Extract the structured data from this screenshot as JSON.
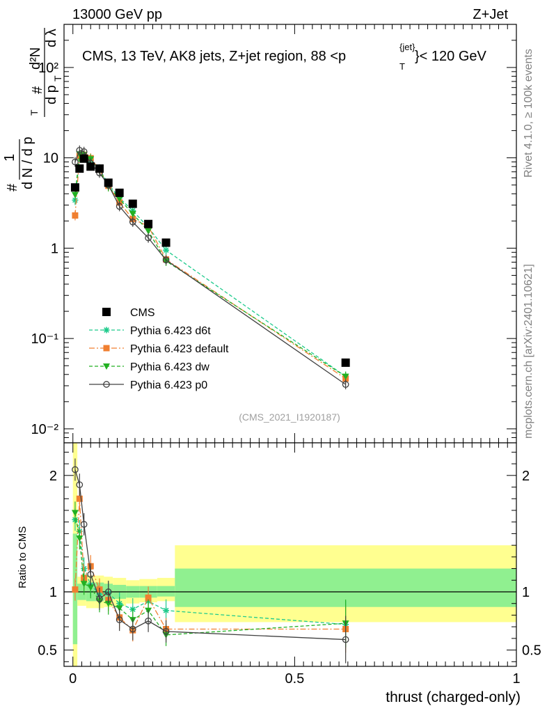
{
  "header": {
    "left": "13000 GeV pp",
    "right": "Z+Jet"
  },
  "side": {
    "rivet": "Rivet 4.1.0, ≥ 100k events",
    "mcplots": "mcplots.cern.ch [arXiv:2401.10621]"
  },
  "colors": {
    "cms": "#000000",
    "d6t": "#1ecb8c",
    "default": "#f07f30",
    "dw": "#22b022",
    "p0": "#404040",
    "band_yellow": "#ffff90",
    "band_green": "#90f090"
  },
  "chart_data": [
    {
      "type": "scatter",
      "title": "CMS, 13 TeV, AK8 jets, Z+jet region, 88 <p_T^{jet}< 120 GeV",
      "title_parts": {
        "main": "CMS, 13 TeV, AK8 jets, Z+jet region, 88 <p",
        "sup": "{jet}",
        "sub": "T",
        "tail": "}< 120 GeV"
      },
      "ylabel": "1 / (dN/dp_T) d²N / dp_T dλ",
      "ylabel_parts": {
        "hash": "#",
        "one": "1",
        "dN": "d N / d p",
        "T": "T",
        "d2N": "d²N",
        "dpT": "d p",
        "dl": "d λ"
      },
      "yscale": "log",
      "ylim": [
        0.007,
        300
      ],
      "xlim": [
        -0.02,
        1.0
      ],
      "ytick_labels": [
        "10⁻²",
        "10⁻¹",
        "1",
        "10",
        "10²"
      ],
      "ytick_values": [
        0.01,
        0.1,
        1,
        10,
        100
      ],
      "watermark": "(CMS_2021_I1920187)",
      "series": [
        {
          "name": "CMS",
          "x": [
            0.005,
            0.015,
            0.025,
            0.04,
            0.06,
            0.08,
            0.105,
            0.135,
            0.17,
            0.21,
            0.615
          ],
          "y": [
            4.7,
            7.6,
            9.8,
            8.0,
            7.6,
            5.3,
            4.1,
            3.1,
            1.85,
            1.15,
            0.054
          ]
        },
        {
          "name": "Pythia 6.423 d6t",
          "x": [
            0.005,
            0.015,
            0.025,
            0.04,
            0.06,
            0.08,
            0.105,
            0.135,
            0.17,
            0.21,
            0.615
          ],
          "y": [
            3.4,
            10.1,
            10.5,
            9.4,
            7.5,
            5.1,
            3.6,
            2.6,
            1.7,
            0.95,
            0.038
          ]
        },
        {
          "name": "Pythia 6.423 default",
          "x": [
            0.005,
            0.015,
            0.025,
            0.04,
            0.06,
            0.08,
            0.105,
            0.135,
            0.17,
            0.21,
            0.615
          ],
          "y": [
            2.3,
            10.5,
            10.8,
            9.9,
            7.4,
            4.9,
            3.2,
            2.1,
            1.75,
            0.75,
            0.036
          ]
        },
        {
          "name": "Pythia 6.423 dw",
          "x": [
            0.005,
            0.015,
            0.025,
            0.04,
            0.06,
            0.08,
            0.105,
            0.135,
            0.17,
            0.21,
            0.615
          ],
          "y": [
            3.9,
            11.0,
            10.8,
            9.7,
            7.3,
            4.8,
            3.5,
            2.4,
            1.55,
            0.72,
            0.038
          ]
        },
        {
          "name": "Pythia 6.423 p0",
          "x": [
            0.005,
            0.015,
            0.025,
            0.04,
            0.06,
            0.08,
            0.105,
            0.135,
            0.17,
            0.21,
            0.615
          ],
          "y": [
            9.0,
            12.1,
            11.7,
            8.7,
            6.8,
            5.0,
            2.9,
            1.95,
            1.3,
            0.74,
            0.031
          ]
        }
      ]
    },
    {
      "type": "scatter",
      "ylabel": "Ratio to CMS",
      "xlabel": "thrust (charged-only)",
      "xlim": [
        -0.02,
        1.0
      ],
      "ylim": [
        0.36,
        2.28
      ],
      "xtick_labels": [
        "0",
        "0.5",
        "1"
      ],
      "xtick_values": [
        0,
        0.5,
        1
      ],
      "ytick_labels": [
        "0.5",
        "1",
        "2"
      ],
      "ytick_values": [
        0.5,
        1,
        2
      ],
      "bands": [
        {
          "x": [
            0.0,
            0.01
          ],
          "yellow": [
            0.0,
            2.3
          ],
          "green": [
            0.55,
            1.5
          ]
        },
        {
          "x": [
            0.01,
            0.03
          ],
          "yellow": [
            0.88,
            1.13
          ],
          "green": [
            0.93,
            1.07
          ]
        },
        {
          "x": [
            0.03,
            0.05
          ],
          "yellow": [
            0.86,
            1.14
          ],
          "green": [
            0.92,
            1.08
          ]
        },
        {
          "x": [
            0.05,
            0.07
          ],
          "yellow": [
            0.86,
            1.14
          ],
          "green": [
            0.92,
            1.08
          ]
        },
        {
          "x": [
            0.07,
            0.09
          ],
          "yellow": [
            0.87,
            1.13
          ],
          "green": [
            0.93,
            1.07
          ]
        },
        {
          "x": [
            0.09,
            0.12
          ],
          "yellow": [
            0.88,
            1.12
          ],
          "green": [
            0.94,
            1.06
          ]
        },
        {
          "x": [
            0.12,
            0.15
          ],
          "yellow": [
            0.9,
            1.1
          ],
          "green": [
            0.95,
            1.05
          ]
        },
        {
          "x": [
            0.15,
            0.19
          ],
          "yellow": [
            0.91,
            1.11
          ],
          "green": [
            0.95,
            1.05
          ]
        },
        {
          "x": [
            0.19,
            0.23
          ],
          "yellow": [
            0.92,
            1.12
          ],
          "green": [
            0.96,
            1.05
          ]
        },
        {
          "x": [
            0.23,
            1.0
          ],
          "yellow": [
            0.74,
            1.4
          ],
          "green": [
            0.87,
            1.2
          ]
        }
      ],
      "series": [
        {
          "name": "Pythia 6.423 d6t",
          "x": [
            0.005,
            0.015,
            0.025,
            0.04,
            0.06,
            0.08,
            0.105,
            0.135,
            0.17,
            0.21,
            0.615
          ],
          "y": [
            1.62,
            1.52,
            1.2,
            1.06,
            0.98,
            0.99,
            0.9,
            0.85,
            0.92,
            0.84,
            0.72
          ]
        },
        {
          "name": "Pythia 6.423 default",
          "x": [
            0.005,
            0.015,
            0.025,
            0.04,
            0.06,
            0.08,
            0.105,
            0.135,
            0.17,
            0.21,
            0.615
          ],
          "y": [
            1.02,
            1.8,
            1.12,
            1.22,
            1.02,
            0.93,
            0.78,
            0.67,
            0.95,
            0.68,
            0.68
          ]
        },
        {
          "name": "Pythia 6.423 dw",
          "x": [
            0.005,
            0.015,
            0.025,
            0.04,
            0.06,
            0.08,
            0.105,
            0.135,
            0.17,
            0.21,
            0.615
          ],
          "y": [
            1.68,
            1.46,
            1.07,
            1.04,
            0.92,
            0.9,
            0.86,
            0.76,
            0.84,
            0.63,
            0.73
          ]
        },
        {
          "name": "Pythia 6.423 p0",
          "x": [
            0.005,
            0.015,
            0.025,
            0.04,
            0.06,
            0.08,
            0.105,
            0.135,
            0.17,
            0.21,
            0.615
          ],
          "y": [
            2.05,
            1.92,
            1.58,
            1.15,
            0.94,
            1.0,
            0.76,
            0.68,
            0.75,
            0.66,
            0.59
          ]
        }
      ]
    }
  ]
}
